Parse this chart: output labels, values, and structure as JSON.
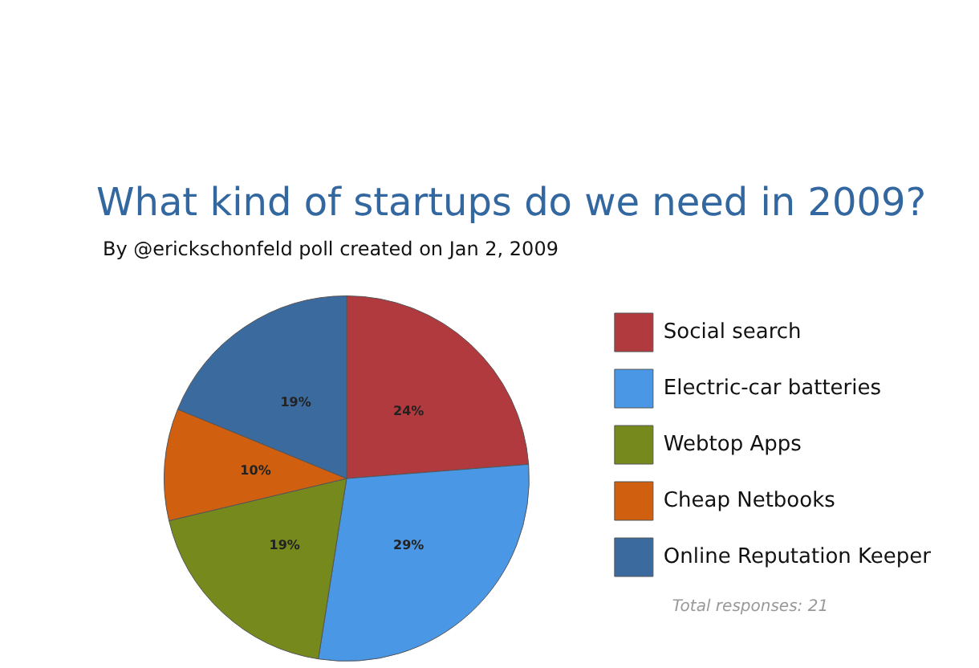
{
  "chart_data": {
    "type": "pie",
    "title": "What kind of startups do we need in 2009?",
    "subtitle": "By @erickschonfeld poll created on Jan 2, 2009",
    "categories": [
      "Social search",
      "Electric-car batteries",
      "Webtop Apps",
      "Cheap Netbooks",
      "Online Reputation Keeper"
    ],
    "values": [
      24,
      29,
      19,
      10,
      19
    ],
    "value_labels": [
      "24%",
      "29%",
      "19%",
      "10%",
      "19%"
    ],
    "colors": [
      "#b03a3e",
      "#4a97e6",
      "#76891c",
      "#d0600f",
      "#3b6a9f"
    ],
    "legend": "right",
    "annotations": [
      "Total responses: 21"
    ]
  }
}
